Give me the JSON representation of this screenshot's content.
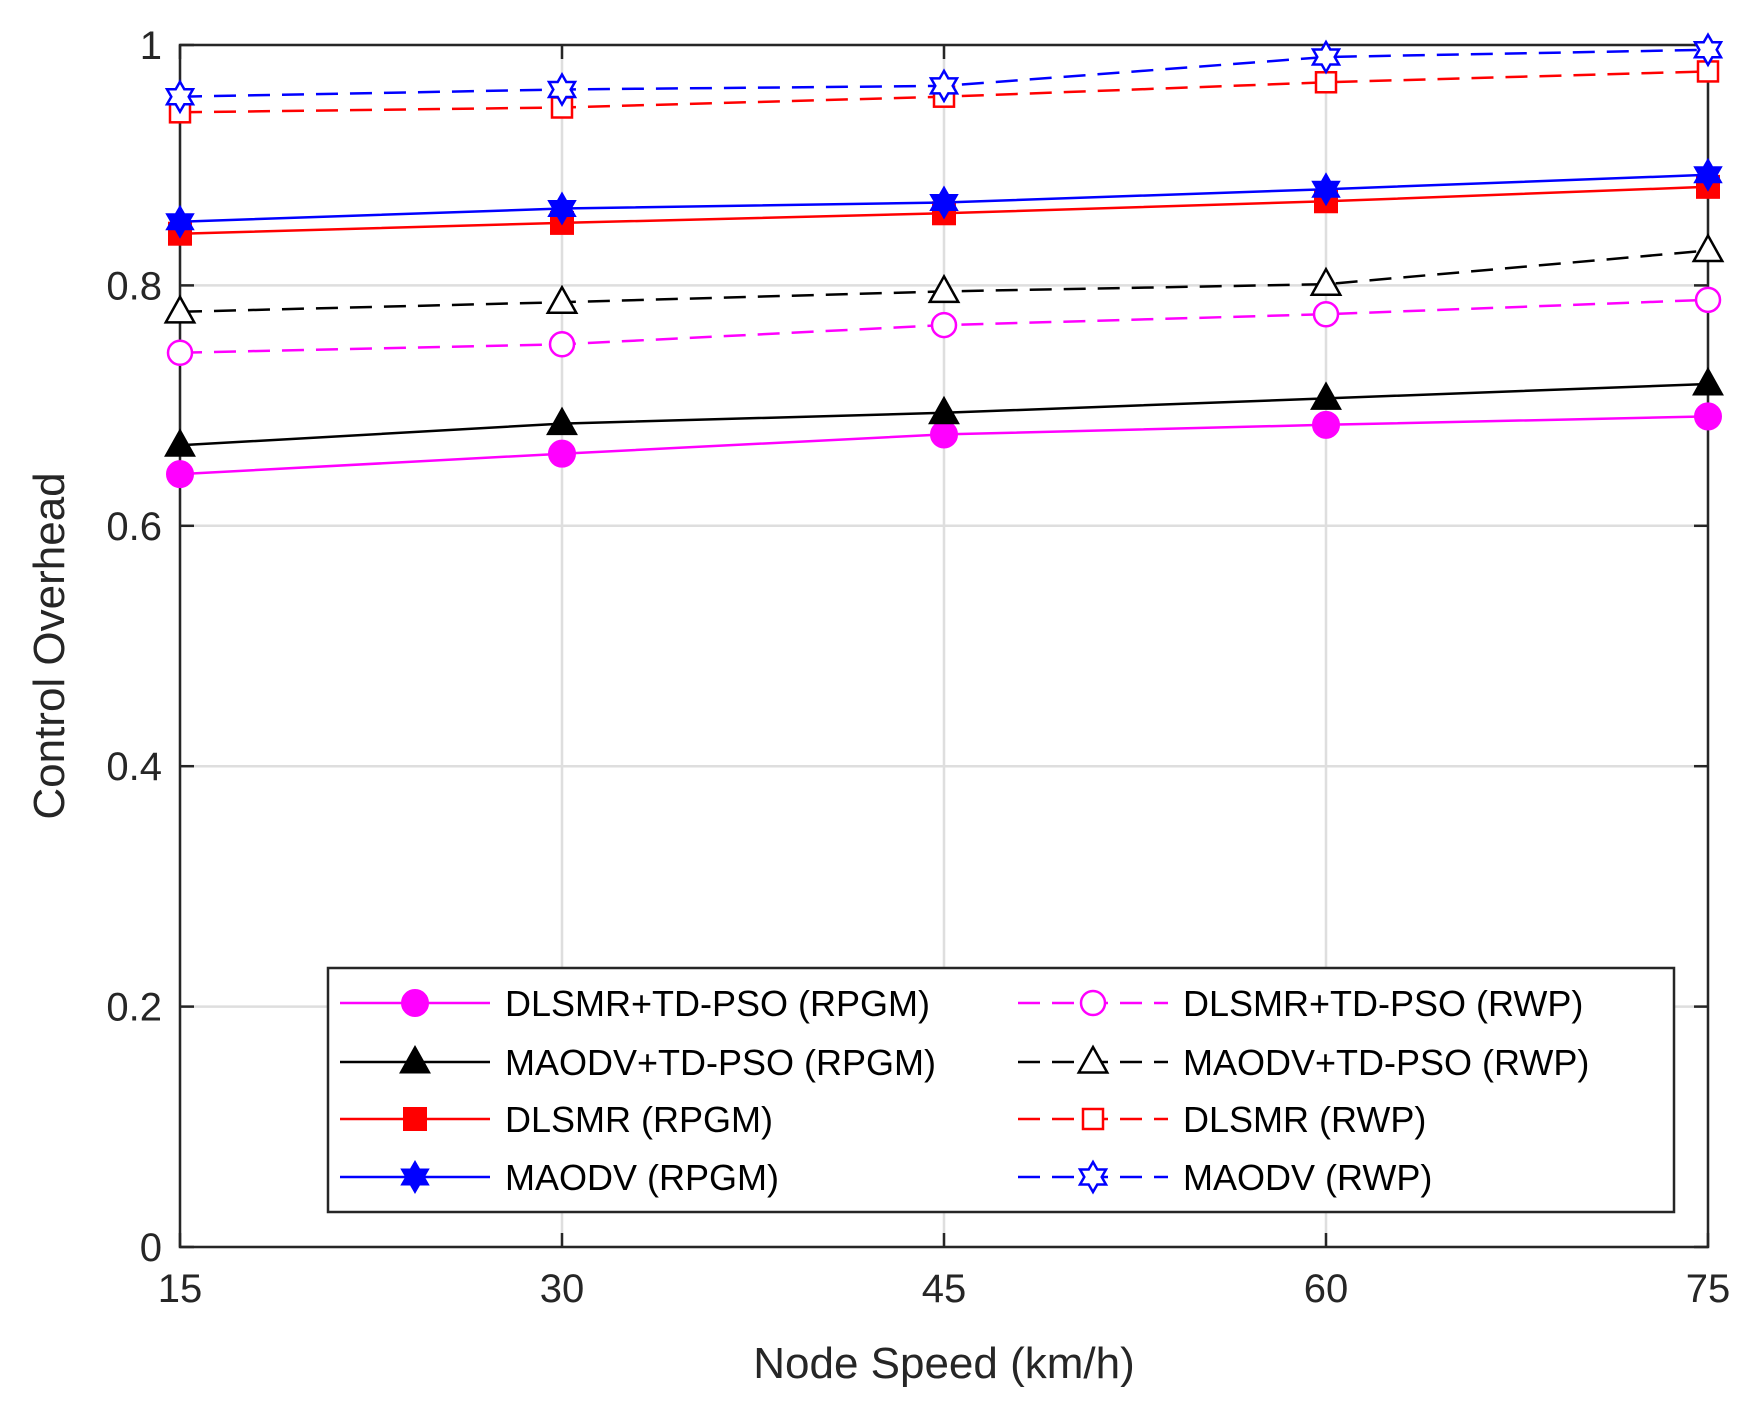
{
  "chart_data": {
    "type": "line",
    "title": "",
    "xlabel": "Node Speed (km/h)",
    "ylabel": "Control Overhead",
    "x": [
      15,
      30,
      45,
      60,
      75
    ],
    "x_tick_labels": [
      "15",
      "30",
      "45",
      "60",
      "75"
    ],
    "y_tick_labels": [
      "0",
      "0.2",
      "0.4",
      "0.6",
      "0.8",
      "1"
    ],
    "y_ticks": [
      0,
      0.2,
      0.4,
      0.6,
      0.8,
      1
    ],
    "xlim": [
      15,
      75
    ],
    "ylim": [
      0,
      1
    ],
    "grid": true,
    "legend_position": "bottom-right",
    "series": [
      {
        "name": "DLSMR+TD-PSO (RPGM)",
        "color": "#ff00ff",
        "dash": "solid",
        "marker": "circle",
        "filled": true,
        "values": [
          0.643,
          0.66,
          0.676,
          0.684,
          0.691
        ]
      },
      {
        "name": "MAODV+TD-PSO (RPGM)",
        "color": "#000000",
        "dash": "solid",
        "marker": "triangle",
        "filled": true,
        "values": [
          0.667,
          0.685,
          0.694,
          0.706,
          0.718
        ]
      },
      {
        "name": "DLSMR (RPGM)",
        "color": "#ff0000",
        "dash": "solid",
        "marker": "square",
        "filled": true,
        "values": [
          0.843,
          0.852,
          0.86,
          0.87,
          0.882
        ]
      },
      {
        "name": "MAODV (RPGM)",
        "color": "#0000ff",
        "dash": "solid",
        "marker": "hexagram",
        "filled": true,
        "values": [
          0.853,
          0.864,
          0.869,
          0.88,
          0.892
        ]
      },
      {
        "name": "DLSMR+TD-PSO (RWP)",
        "color": "#ff00ff",
        "dash": "dashed",
        "marker": "circle",
        "filled": false,
        "values": [
          0.744,
          0.751,
          0.767,
          0.776,
          0.788
        ]
      },
      {
        "name": "MAODV+TD-PSO (RWP)",
        "color": "#000000",
        "dash": "dashed",
        "marker": "triangle",
        "filled": false,
        "values": [
          0.778,
          0.786,
          0.795,
          0.801,
          0.829
        ]
      },
      {
        "name": "DLSMR (RWP)",
        "color": "#ff0000",
        "dash": "dashed",
        "marker": "square",
        "filled": false,
        "values": [
          0.944,
          0.948,
          0.957,
          0.969,
          0.978
        ]
      },
      {
        "name": "MAODV (RWP)",
        "color": "#0000ff",
        "dash": "dashed",
        "marker": "hexagram",
        "filled": false,
        "values": [
          0.957,
          0.963,
          0.966,
          0.99,
          0.996
        ]
      }
    ]
  }
}
